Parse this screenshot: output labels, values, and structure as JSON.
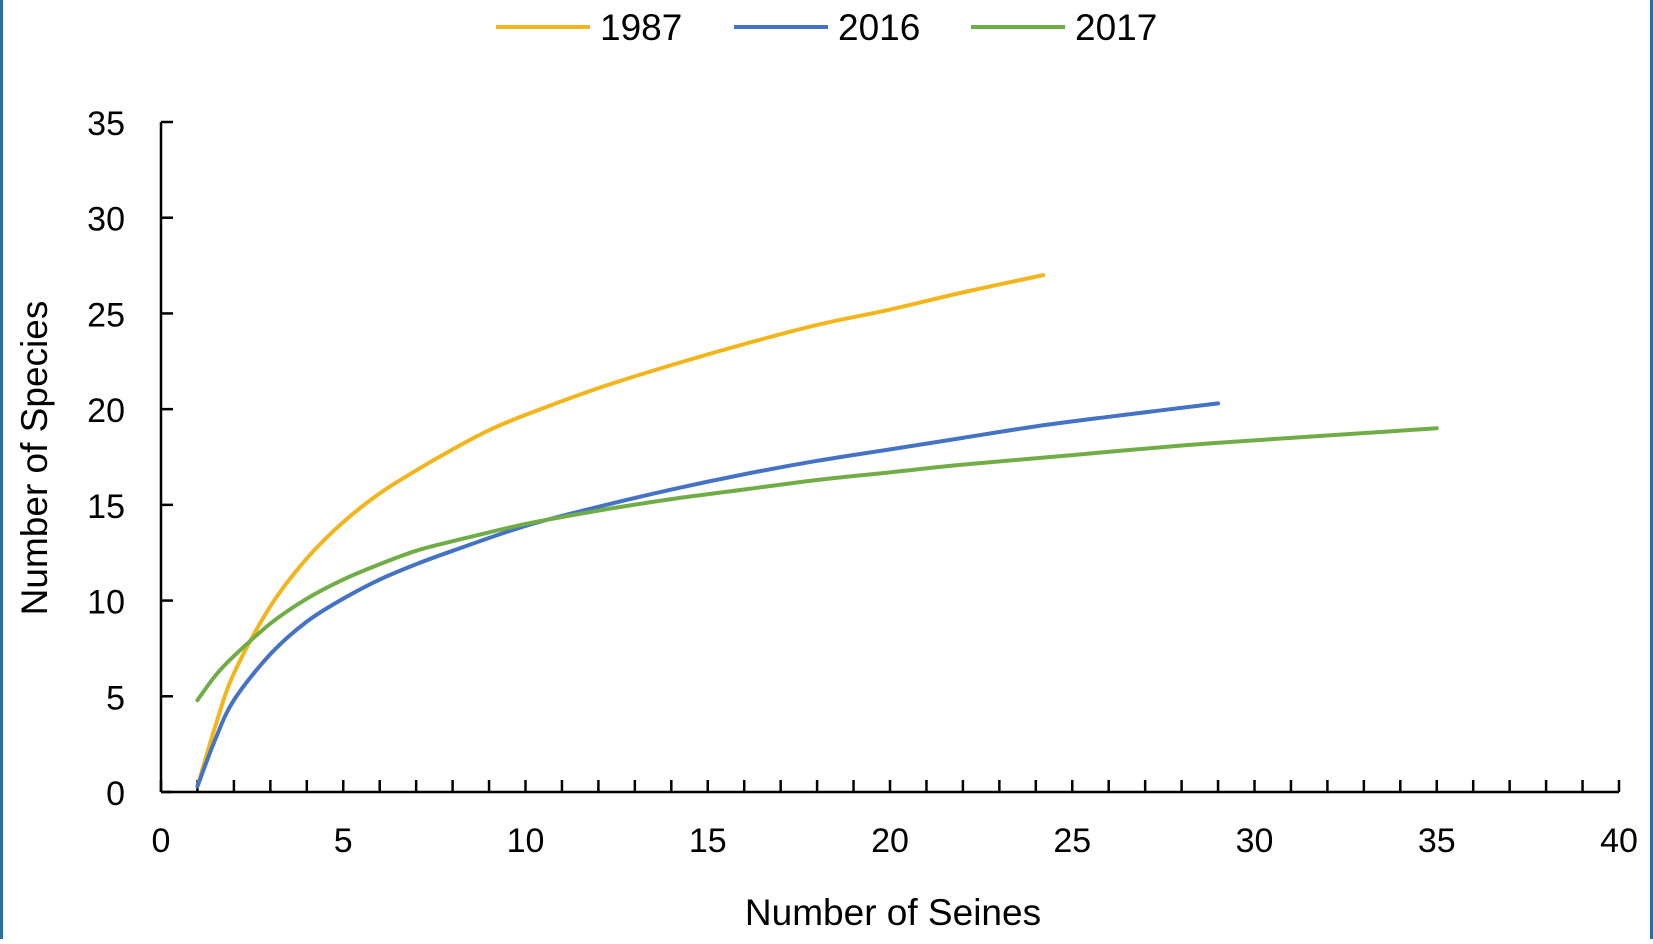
{
  "chart_data": {
    "type": "line",
    "xlabel": "Number of Seines",
    "ylabel": "Number of Species",
    "xlim": [
      0,
      40
    ],
    "ylim": [
      0,
      35
    ],
    "x_ticks": [
      0,
      5,
      10,
      15,
      20,
      25,
      30,
      35,
      40
    ],
    "y_ticks": [
      0,
      5,
      10,
      15,
      20,
      25,
      30,
      35
    ],
    "grid": false,
    "legend_position": "top-center",
    "series": [
      {
        "name": "1987",
        "color": "#F2B61C",
        "x": [
          1,
          1.5,
          2,
          3,
          4,
          5,
          6,
          7,
          8,
          9,
          10,
          12,
          14,
          16,
          18,
          20,
          22,
          24.2
        ],
        "y": [
          0.3,
          3.5,
          6.2,
          9.7,
          12.2,
          14.1,
          15.6,
          16.8,
          17.9,
          18.9,
          19.7,
          21.1,
          22.3,
          23.4,
          24.4,
          25.2,
          26.1,
          27
        ]
      },
      {
        "name": "2016",
        "color": "#4472C4",
        "x": [
          1,
          1.5,
          2,
          3,
          4,
          5,
          6,
          7,
          8,
          10,
          12,
          14,
          16,
          18,
          20,
          22,
          24,
          26,
          29
        ],
        "y": [
          0.3,
          2.8,
          4.8,
          7.2,
          8.9,
          10.1,
          11.1,
          11.9,
          12.6,
          13.9,
          14.9,
          15.8,
          16.6,
          17.3,
          17.9,
          18.5,
          19.1,
          19.6,
          20.3
        ]
      },
      {
        "name": "2017",
        "color": "#70AD47",
        "x": [
          1,
          1.5,
          2,
          3,
          4,
          5,
          6,
          7,
          8,
          10,
          12,
          14,
          16,
          18,
          20,
          22,
          25,
          28,
          31,
          35
        ],
        "y": [
          4.8,
          6.1,
          7.1,
          8.8,
          10.1,
          11.1,
          11.9,
          12.6,
          13.1,
          14,
          14.7,
          15.3,
          15.8,
          16.3,
          16.7,
          17.1,
          17.6,
          18.1,
          18.5,
          19
        ]
      }
    ]
  }
}
